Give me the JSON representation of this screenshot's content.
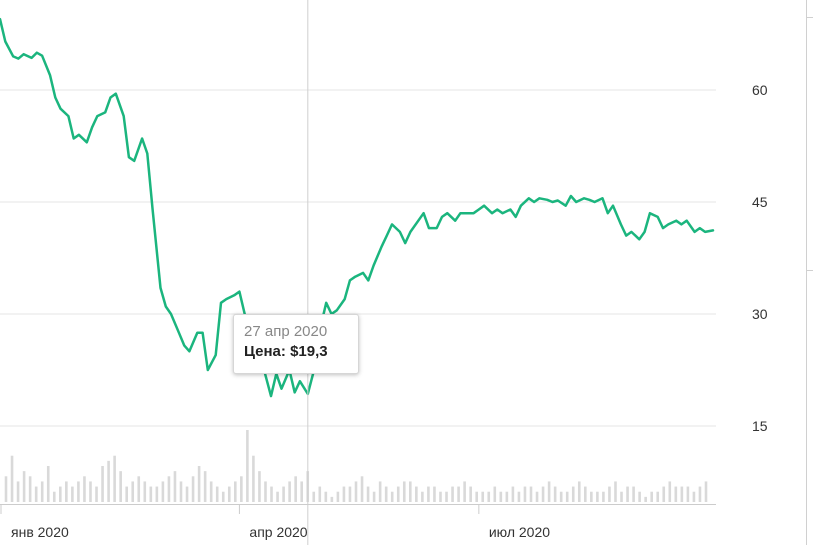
{
  "chart_data": {
    "type": "line",
    "x": [
      "2020-01-01",
      "2020-01-03",
      "2020-01-06",
      "2020-01-08",
      "2020-01-10",
      "2020-01-13",
      "2020-01-15",
      "2020-01-17",
      "2020-01-20",
      "2020-01-22",
      "2020-01-24",
      "2020-01-27",
      "2020-01-29",
      "2020-01-31",
      "2020-02-03",
      "2020-02-05",
      "2020-02-07",
      "2020-02-10",
      "2020-02-12",
      "2020-02-14",
      "2020-02-17",
      "2020-02-19",
      "2020-02-21",
      "2020-02-24",
      "2020-02-26",
      "2020-02-28",
      "2020-03-02",
      "2020-03-04",
      "2020-03-06",
      "2020-03-09",
      "2020-03-11",
      "2020-03-13",
      "2020-03-16",
      "2020-03-18",
      "2020-03-20",
      "2020-03-23",
      "2020-03-25",
      "2020-03-27",
      "2020-03-30",
      "2020-04-01",
      "2020-04-03",
      "2020-04-06",
      "2020-04-08",
      "2020-04-10",
      "2020-04-13",
      "2020-04-15",
      "2020-04-17",
      "2020-04-20",
      "2020-04-22",
      "2020-04-24",
      "2020-04-27",
      "2020-04-29",
      "2020-05-01",
      "2020-05-04",
      "2020-05-06",
      "2020-05-08",
      "2020-05-11",
      "2020-05-13",
      "2020-05-15",
      "2020-05-18",
      "2020-05-20",
      "2020-05-22",
      "2020-05-25",
      "2020-05-27",
      "2020-05-29",
      "2020-06-01",
      "2020-06-03",
      "2020-06-05",
      "2020-06-08",
      "2020-06-10",
      "2020-06-12",
      "2020-06-15",
      "2020-06-17",
      "2020-06-19",
      "2020-06-22",
      "2020-06-24",
      "2020-06-26",
      "2020-06-29",
      "2020-07-01",
      "2020-07-03",
      "2020-07-06",
      "2020-07-08",
      "2020-07-10",
      "2020-07-13",
      "2020-07-15",
      "2020-07-17",
      "2020-07-20",
      "2020-07-22",
      "2020-07-24",
      "2020-07-27",
      "2020-07-29",
      "2020-07-31",
      "2020-08-03",
      "2020-08-05",
      "2020-08-07",
      "2020-08-10",
      "2020-08-12",
      "2020-08-14",
      "2020-08-17",
      "2020-08-19",
      "2020-08-21",
      "2020-08-24",
      "2020-08-26",
      "2020-08-28",
      "2020-08-31",
      "2020-09-02",
      "2020-09-04",
      "2020-09-07",
      "2020-09-09",
      "2020-09-11",
      "2020-09-14",
      "2020-09-16",
      "2020-09-18",
      "2020-09-21",
      "2020-09-23",
      "2020-09-25",
      "2020-09-28"
    ],
    "series": [
      {
        "values": [
          69.5,
          66.5,
          64.5,
          64.2,
          64.8,
          64.3,
          65.0,
          64.6,
          62.0,
          59.0,
          57.5,
          56.5,
          53.5,
          54.0,
          53.0,
          55.0,
          56.5,
          57.0,
          59.0,
          59.5,
          56.5,
          51.0,
          50.5,
          53.5,
          51.5,
          44.0,
          33.5,
          31.0,
          30.0,
          27.5,
          25.8,
          25.0,
          27.5,
          27.5,
          22.5,
          24.5,
          31.5,
          32.0,
          32.5,
          33.0,
          30.0,
          27.0,
          22.5,
          23.0,
          19.0,
          22.0,
          20.0,
          22.5,
          19.5,
          21.0,
          19.3,
          22.0,
          27.0,
          31.5,
          30.0,
          30.5,
          32.0,
          34.5,
          35.0,
          35.5,
          34.5,
          36.5,
          39.0,
          40.5,
          42.0,
          41.0,
          39.5,
          41.0,
          42.5,
          43.5,
          41.5,
          41.5,
          43.0,
          43.5,
          42.5,
          43.5,
          43.5,
          43.5,
          44.0,
          44.5,
          43.5,
          44.0,
          43.5,
          44.0,
          43.0,
          44.5,
          45.5,
          45.0,
          45.5,
          45.3,
          45.0,
          45.2,
          44.5,
          45.8,
          45.0,
          45.5,
          45.3,
          45.0,
          45.5,
          43.5,
          44.5,
          42.0,
          40.5,
          41.0,
          40.0,
          41.0,
          43.5,
          43.0,
          41.5,
          42.0,
          42.5,
          42.0,
          42.5,
          41.0,
          41.5,
          41.0,
          41.2
        ]
      }
    ],
    "y_ticks": [
      "60",
      "45",
      "30",
      "15"
    ],
    "ylim": [
      10,
      72
    ],
    "x_ticks": [
      {
        "label": "янв 2020",
        "date": "2020-01-01"
      },
      {
        "label": "апр 2020",
        "date": "2020-04-01"
      },
      {
        "label": "июл 2020",
        "date": "2020-07-01"
      }
    ],
    "volume": [
      5,
      9,
      4,
      6,
      5,
      3,
      4,
      7,
      2,
      3,
      4,
      3,
      4,
      5,
      4,
      3,
      7,
      8,
      9,
      6,
      3,
      4,
      5,
      4,
      3,
      3,
      4,
      5,
      6,
      4,
      3,
      5,
      7,
      6,
      4,
      3,
      2,
      3,
      4,
      5,
      14,
      9,
      6,
      4,
      3,
      2,
      3,
      4,
      5,
      4,
      6,
      2,
      3,
      2,
      1,
      2,
      3,
      3,
      4,
      5,
      3,
      2,
      4,
      3,
      2,
      3,
      4,
      4,
      3,
      2,
      3,
      3,
      2,
      2,
      3,
      3,
      4,
      3,
      2,
      2,
      2,
      3,
      2,
      2,
      3,
      2,
      3,
      3,
      2,
      3,
      4,
      3,
      2,
      2,
      3,
      4,
      3,
      2,
      2,
      2,
      3,
      4,
      2,
      3,
      3,
      2,
      1,
      2,
      2,
      3,
      4,
      3,
      3,
      3,
      2,
      3,
      4
    ],
    "line_color": "#1bb57e",
    "volume_color": "#d9d9d9",
    "crosshair_date": "2020-04-27"
  },
  "tooltip": {
    "date": "27 апр 2020",
    "price_label": "Цена:",
    "price_value": "$19,3"
  }
}
